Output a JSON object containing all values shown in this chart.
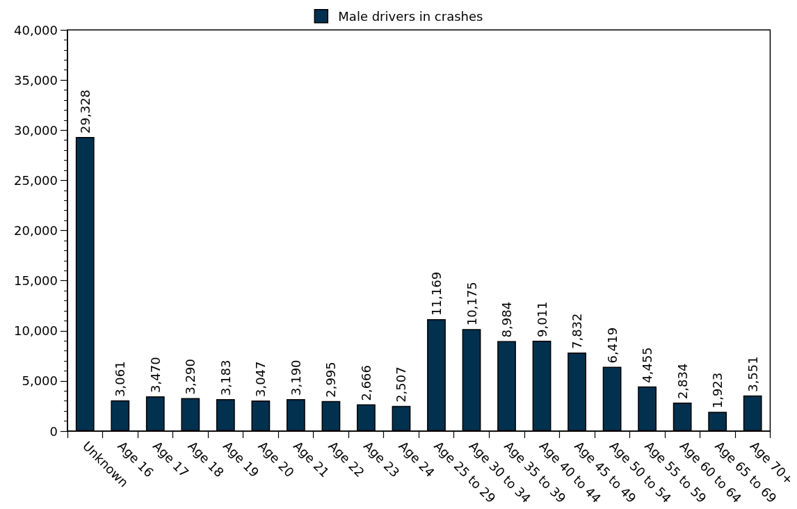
{
  "chart_data": {
    "type": "bar",
    "categories": [
      "Unknown",
      "Age 16",
      "Age 17",
      "Age 18",
      "Age 19",
      "Age 20",
      "Age 21",
      "Age 22",
      "Age 23",
      "Age 24",
      "Age 25 to 29",
      "Age 30 to 34",
      "Age 35 to 39",
      "Age 40 to 44",
      "Age 45 to 49",
      "Age 50 to 54",
      "Age 55 to 59",
      "Age 60 to 64",
      "Age 65 to 69",
      "Age 70+"
    ],
    "series": [
      {
        "name": "Male drivers in crashes",
        "color": "#023150",
        "values": [
          29328,
          3061,
          3470,
          3290,
          3183,
          3047,
          3190,
          2995,
          2666,
          2507,
          11169,
          10175,
          8984,
          9011,
          7832,
          6419,
          4455,
          2834,
          1923,
          3551
        ],
        "value_labels": [
          "29,328",
          "3,061",
          "3,470",
          "3,290",
          "3,183",
          "3,047",
          "3,190",
          "2,995",
          "2,666",
          "2,507",
          "11,169",
          "10,175",
          "8,984",
          "9,011",
          "7,832",
          "6,419",
          "4,455",
          "2,834",
          "1,923",
          "3,551"
        ]
      }
    ],
    "ylim": [
      0,
      40000
    ],
    "yticks": [
      {
        "value": 0,
        "label": "0"
      },
      {
        "value": 1000,
        "label": null
      },
      {
        "value": 2000,
        "label": null
      },
      {
        "value": 3000,
        "label": null
      },
      {
        "value": 4000,
        "label": null
      },
      {
        "value": 5000,
        "label": "5,000"
      },
      {
        "value": 6000,
        "label": null
      },
      {
        "value": 7000,
        "label": null
      },
      {
        "value": 8000,
        "label": null
      },
      {
        "value": 9000,
        "label": null
      },
      {
        "value": 10000,
        "label": "10,000"
      },
      {
        "value": 11000,
        "label": null
      },
      {
        "value": 12000,
        "label": null
      },
      {
        "value": 13000,
        "label": null
      },
      {
        "value": 14000,
        "label": null
      },
      {
        "value": 15000,
        "label": "15,000"
      },
      {
        "value": 16000,
        "label": null
      },
      {
        "value": 17000,
        "label": null
      },
      {
        "value": 18000,
        "label": null
      },
      {
        "value": 19000,
        "label": null
      },
      {
        "value": 20000,
        "label": "20,000"
      },
      {
        "value": 21000,
        "label": null
      },
      {
        "value": 22000,
        "label": null
      },
      {
        "value": 23000,
        "label": null
      },
      {
        "value": 24000,
        "label": null
      },
      {
        "value": 25000,
        "label": "25,000"
      },
      {
        "value": 26000,
        "label": null
      },
      {
        "value": 27000,
        "label": null
      },
      {
        "value": 28000,
        "label": null
      },
      {
        "value": 29000,
        "label": null
      },
      {
        "value": 30000,
        "label": "30,000"
      },
      {
        "value": 31000,
        "label": null
      },
      {
        "value": 32000,
        "label": null
      },
      {
        "value": 33000,
        "label": null
      },
      {
        "value": 34000,
        "label": null
      },
      {
        "value": 35000,
        "label": "35,000"
      },
      {
        "value": 36000,
        "label": null
      },
      {
        "value": 37000,
        "label": null
      },
      {
        "value": 38000,
        "label": null
      },
      {
        "value": 39000,
        "label": null
      },
      {
        "value": 40000,
        "label": "40,000"
      }
    ],
    "legend": "top"
  }
}
